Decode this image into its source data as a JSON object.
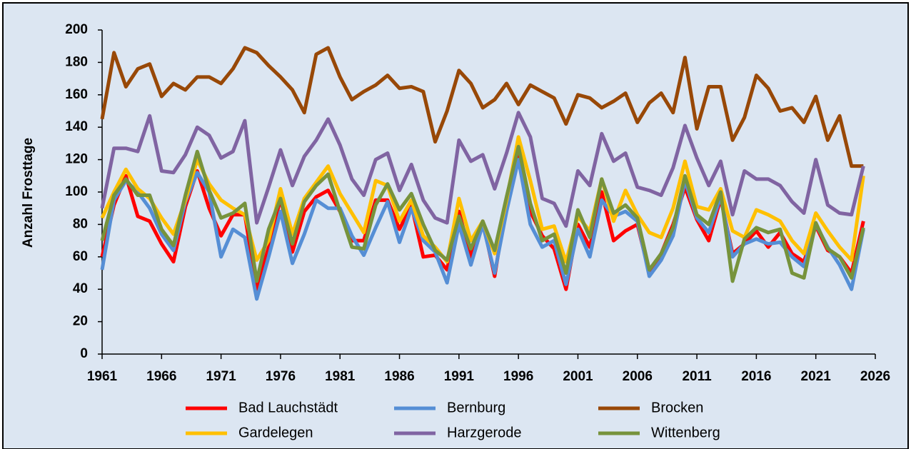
{
  "chart_data": {
    "type": "line",
    "y_label": "Anzahl Frosttage",
    "x": [
      1961,
      1962,
      1963,
      1964,
      1965,
      1966,
      1967,
      1968,
      1969,
      1970,
      1971,
      1972,
      1973,
      1974,
      1975,
      1976,
      1977,
      1978,
      1979,
      1980,
      1981,
      1982,
      1983,
      1984,
      1985,
      1986,
      1987,
      1988,
      1989,
      1990,
      1991,
      1992,
      1993,
      1994,
      1995,
      1996,
      1997,
      1998,
      1999,
      2000,
      2001,
      2002,
      2003,
      2004,
      2005,
      2006,
      2007,
      2008,
      2009,
      2010,
      2011,
      2012,
      2013,
      2014,
      2015,
      2016,
      2017,
      2018,
      2019,
      2020,
      2021,
      2022,
      2023,
      2024,
      2025
    ],
    "xlim": [
      1961,
      2026
    ],
    "xticks": [
      1961,
      1966,
      1971,
      1976,
      1981,
      1986,
      1991,
      1996,
      2001,
      2006,
      2011,
      2016,
      2021,
      2026
    ],
    "ylim": [
      0,
      200
    ],
    "yticks": [
      0,
      20,
      40,
      60,
      80,
      100,
      120,
      140,
      160,
      180,
      200
    ],
    "grid": false,
    "legend": "bottom",
    "series": [
      {
        "name": "Bad Lauchstädt",
        "color": "#ff0000",
        "values": [
          60,
          92,
          110,
          85,
          82,
          68,
          57,
          91,
          113,
          90,
          73,
          86,
          86,
          40,
          66,
          96,
          63,
          88,
          97,
          101,
          88,
          70,
          70,
          95,
          95,
          77,
          92,
          60,
          61,
          52,
          88,
          60,
          82,
          48,
          94,
          125,
          88,
          73,
          65,
          40,
          80,
          66,
          100,
          70,
          76,
          80,
          50,
          62,
          80,
          103,
          83,
          70,
          96,
          62,
          68,
          76,
          66,
          75,
          62,
          57,
          79,
          64,
          60,
          50,
          82
        ]
      },
      {
        "name": "Bernburg",
        "color": "#558ed5",
        "values": [
          52,
          95,
          107,
          100,
          90,
          74,
          64,
          94,
          112,
          100,
          60,
          77,
          72,
          34,
          60,
          88,
          56,
          74,
          95,
          90,
          90,
          73,
          61,
          78,
          94,
          69,
          90,
          70,
          63,
          44,
          80,
          55,
          80,
          50,
          88,
          120,
          80,
          66,
          70,
          43,
          77,
          60,
          95,
          85,
          88,
          82,
          48,
          58,
          73,
          107,
          84,
          75,
          97,
          60,
          68,
          71,
          68,
          69,
          60,
          54,
          80,
          66,
          55,
          40,
          77
        ]
      },
      {
        "name": "Brocken",
        "color": "#984807",
        "values": [
          145,
          186,
          165,
          176,
          179,
          159,
          167,
          163,
          171,
          171,
          167,
          176,
          189,
          186,
          178,
          171,
          163,
          149,
          185,
          189,
          171,
          157,
          162,
          166,
          172,
          164,
          165,
          162,
          131,
          150,
          175,
          167,
          152,
          157,
          167,
          154,
          166,
          162,
          158,
          142,
          160,
          158,
          152,
          156,
          161,
          143,
          155,
          161,
          149,
          183,
          139,
          165,
          165,
          132,
          146,
          172,
          164,
          150,
          152,
          143,
          159,
          132,
          147,
          116,
          116
        ]
      },
      {
        "name": "Gardelegen",
        "color": "#ffc000",
        "values": [
          84,
          100,
          114,
          102,
          96,
          84,
          74,
          95,
          120,
          105,
          95,
          90,
          86,
          58,
          70,
          102,
          74,
          96,
          106,
          116,
          99,
          87,
          75,
          107,
          104,
          82,
          95,
          73,
          66,
          57,
          96,
          70,
          82,
          62,
          95,
          134,
          107,
          77,
          79,
          57,
          85,
          76,
          108,
          82,
          101,
          86,
          75,
          72,
          90,
          119,
          91,
          89,
          102,
          76,
          72,
          89,
          86,
          82,
          70,
          62,
          87,
          76,
          66,
          58,
          110
        ]
      },
      {
        "name": "Harzgerode",
        "color": "#8064a2",
        "values": [
          90,
          127,
          127,
          125,
          147,
          113,
          112,
          123,
          140,
          135,
          121,
          125,
          144,
          81,
          103,
          126,
          104,
          122,
          132,
          145,
          129,
          108,
          98,
          120,
          124,
          101,
          117,
          95,
          84,
          81,
          132,
          119,
          123,
          102,
          124,
          149,
          134,
          96,
          93,
          79,
          113,
          104,
          136,
          119,
          124,
          103,
          101,
          98,
          115,
          141,
          121,
          104,
          119,
          86,
          113,
          108,
          108,
          104,
          94,
          87,
          120,
          92,
          87,
          86,
          116
        ]
      },
      {
        "name": "Wittenberg",
        "color": "#77933c",
        "values": [
          70,
          98,
          108,
          98,
          98,
          77,
          67,
          98,
          125,
          101,
          84,
          87,
          93,
          45,
          77,
          96,
          68,
          94,
          104,
          111,
          88,
          66,
          65,
          92,
          105,
          89,
          99,
          80,
          64,
          58,
          85,
          65,
          82,
          64,
          97,
          128,
          93,
          70,
          74,
          50,
          89,
          72,
          108,
          87,
          92,
          84,
          52,
          62,
          78,
          110,
          86,
          80,
          100,
          45,
          71,
          78,
          75,
          77,
          50,
          47,
          81,
          65,
          60,
          47,
          78
        ]
      }
    ]
  }
}
